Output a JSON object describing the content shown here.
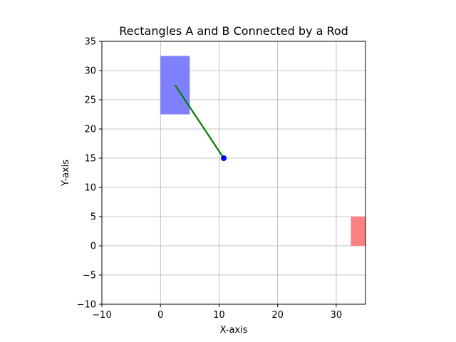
{
  "chart_data": {
    "type": "scatter",
    "title": "Rectangles A and B Connected by a Rod",
    "xlabel": "X-axis",
    "ylabel": "Y-axis",
    "xlim": [
      -10,
      35
    ],
    "ylim": [
      -10,
      35
    ],
    "xticks": [
      -10,
      0,
      10,
      20,
      30
    ],
    "yticks": [
      -10,
      -5,
      0,
      5,
      10,
      15,
      20,
      25,
      30,
      35
    ],
    "xtick_labels": [
      "−10",
      "0",
      "10",
      "20",
      "30"
    ],
    "ytick_labels": [
      "−10",
      "−5",
      "0",
      "5",
      "10",
      "15",
      "20",
      "25",
      "30",
      "35"
    ],
    "grid": true,
    "rectangles": [
      {
        "x": 0,
        "y": 22.5,
        "width": 5,
        "height": 10,
        "color": "#8080ff"
      },
      {
        "x": 32.5,
        "y": 0,
        "width": 5,
        "height": 5,
        "color": "#ff8080"
      }
    ],
    "rod": {
      "x": [
        2.5,
        10.8
      ],
      "y": [
        27.5,
        15.0
      ],
      "color": "#008000"
    },
    "point": {
      "x": 10.8,
      "y": 15.0,
      "color": "#0000ff"
    }
  }
}
